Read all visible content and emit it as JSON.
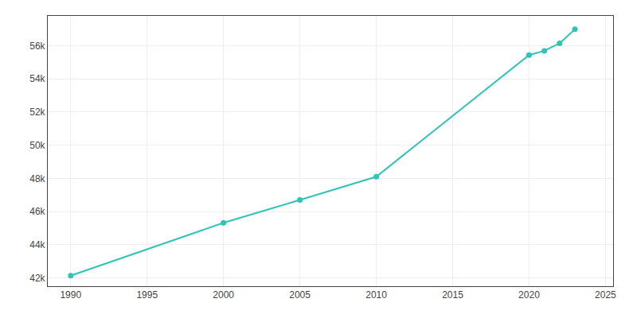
{
  "chart_data": {
    "type": "line",
    "x": [
      1990,
      2000,
      2005,
      2010,
      2020,
      2021,
      2022,
      2023
    ],
    "values": [
      42133,
      45320,
      46700,
      48105,
      55442,
      55694,
      56147,
      57000
    ],
    "color": "#2EC4B6",
    "marker": "circle",
    "xlim": [
      1988.5,
      2025.5
    ],
    "ylim": [
      41500,
      57800
    ],
    "xticks": [
      1990,
      1995,
      2000,
      2005,
      2010,
      2015,
      2020,
      2025
    ],
    "yticks": [
      {
        "value": 42000,
        "label": "42k"
      },
      {
        "value": 44000,
        "label": "44k"
      },
      {
        "value": 46000,
        "label": "46k"
      },
      {
        "value": 48000,
        "label": "48k"
      },
      {
        "value": 50000,
        "label": "50k"
      },
      {
        "value": 52000,
        "label": "52k"
      },
      {
        "value": 54000,
        "label": "54k"
      },
      {
        "value": 56000,
        "label": "56k"
      }
    ],
    "grid": true
  }
}
